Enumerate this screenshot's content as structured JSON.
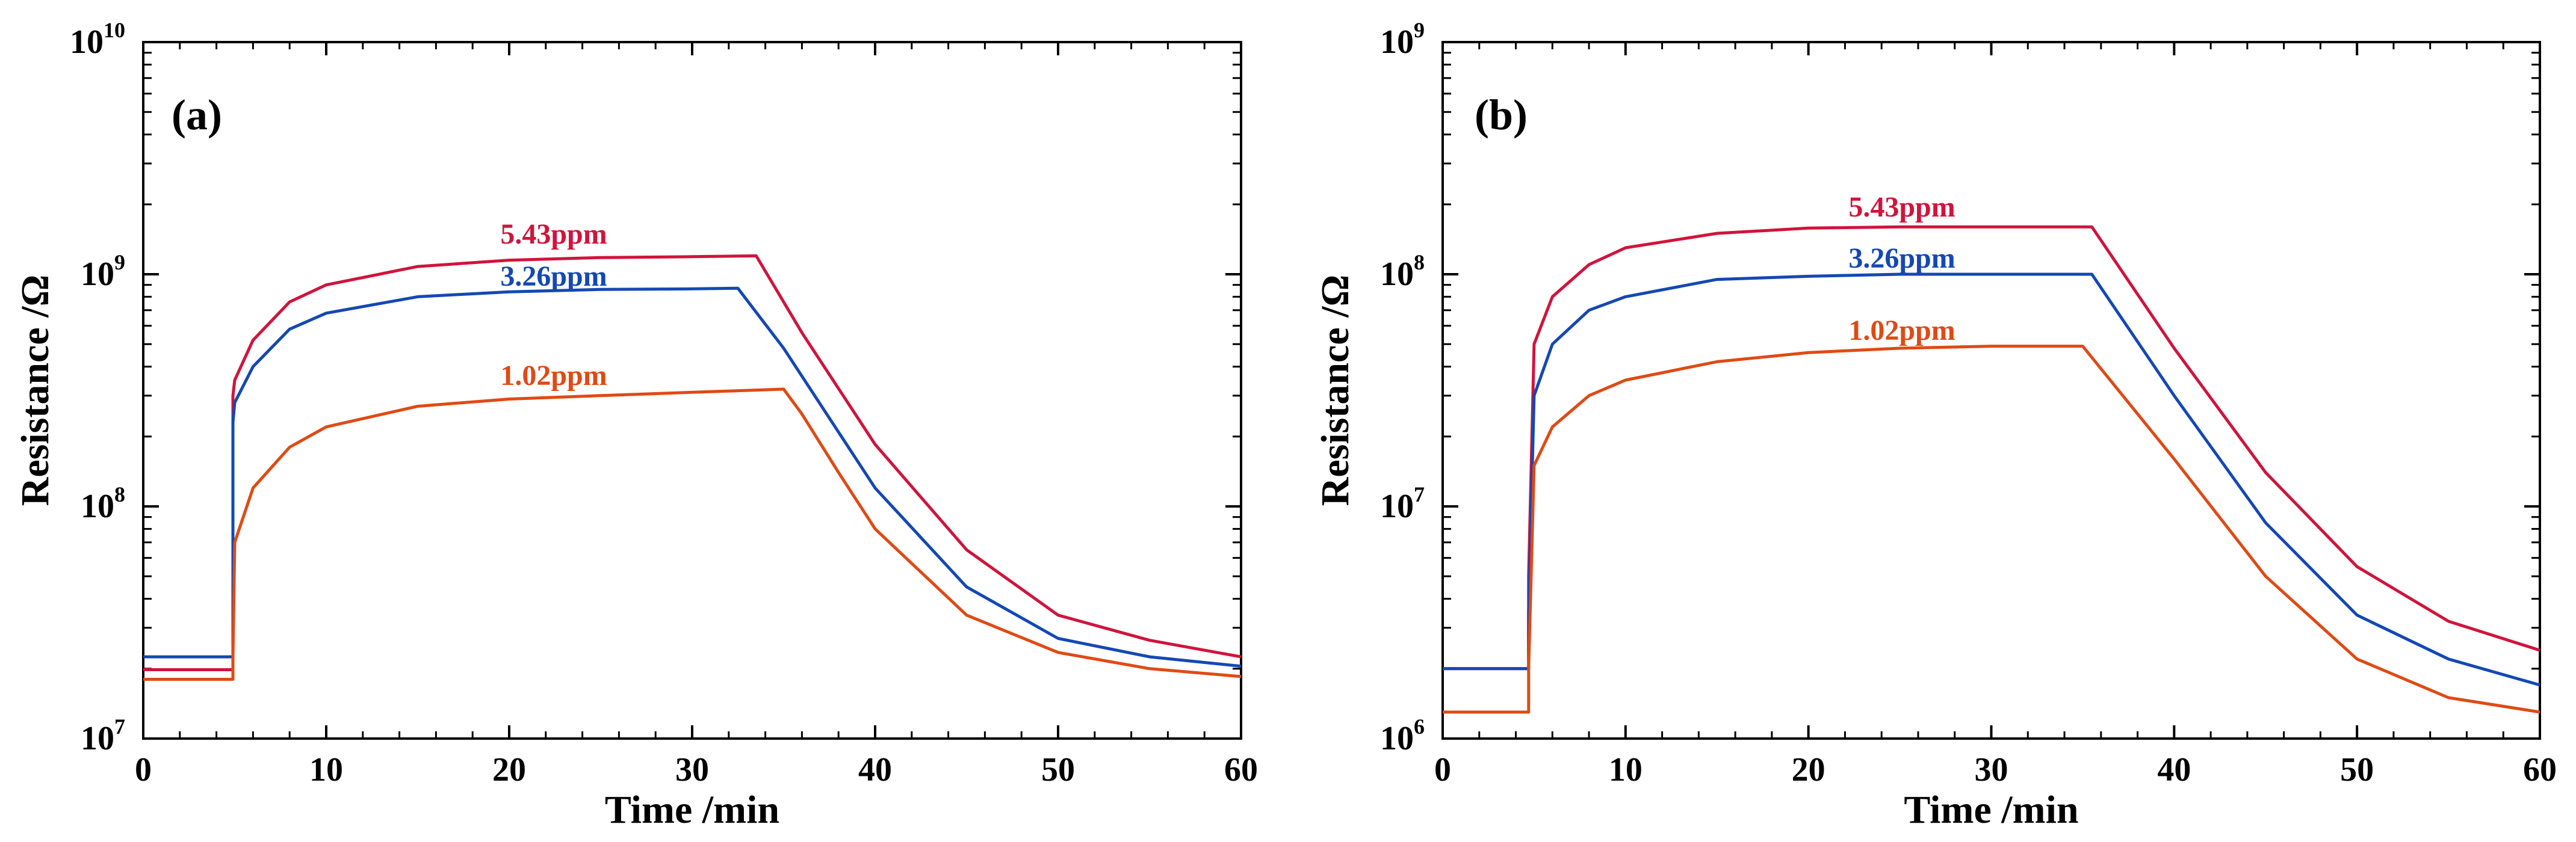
{
  "chart_data": [
    {
      "type": "line",
      "panel_label": "(a)",
      "xlabel": "Time /min",
      "ylabel": "Resistance /Ω",
      "xlim": [
        0,
        60
      ],
      "ylim": [
        10000000,
        10000000000
      ],
      "yscale": "log",
      "x_ticks": [
        "0",
        "10",
        "20",
        "30",
        "40",
        "50",
        "60"
      ],
      "y_ticks": [
        {
          "base": "10",
          "exp": "7"
        },
        {
          "base": "10",
          "exp": "8"
        },
        {
          "base": "10",
          "exp": "9"
        },
        {
          "base": "10",
          "exp": "10"
        }
      ],
      "series": [
        {
          "name": "5.43ppm",
          "color": "#d0143c",
          "x": [
            0,
            4.9,
            4.9,
            5,
            6,
            8,
            10,
            15,
            20,
            25,
            30,
            33.5,
            36,
            40,
            45,
            50,
            55,
            60
          ],
          "y": [
            19800000,
            19800000,
            300000000,
            350000000,
            520000000,
            760000000,
            900000000,
            1080000000,
            1150000000,
            1180000000,
            1190000000,
            1200000000,
            560000000,
            185000000,
            65000000,
            34000000,
            26500000,
            22500000
          ]
        },
        {
          "name": "3.26ppm",
          "color": "#1448b4",
          "x": [
            0,
            4.9,
            4.9,
            5,
            6,
            8,
            10,
            15,
            20,
            25,
            30,
            32.5,
            35,
            40,
            45,
            50,
            55,
            60
          ],
          "y": [
            22500000,
            22500000,
            230000000,
            280000000,
            400000000,
            580000000,
            680000000,
            800000000,
            840000000,
            860000000,
            865000000,
            870000000,
            480000000,
            120000000,
            45000000,
            27000000,
            22500000,
            20500000
          ]
        },
        {
          "name": "1.02ppm",
          "color": "#e04a14",
          "x": [
            0,
            4.9,
            4.9,
            5,
            6,
            8,
            10,
            15,
            20,
            25,
            30,
            35,
            36,
            38,
            40,
            45,
            50,
            55,
            60
          ],
          "y": [
            18000000,
            18000000,
            22000000,
            70000000,
            120000000,
            180000000,
            220000000,
            270000000,
            290000000,
            300000000,
            310000000,
            320000000,
            250000000,
            140000000,
            80000000,
            34000000,
            23500000,
            20000000,
            18500000
          ]
        }
      ]
    },
    {
      "type": "line",
      "panel_label": "(b)",
      "xlabel": "Time /min",
      "ylabel": "Resistance /Ω",
      "xlim": [
        0,
        60
      ],
      "ylim": [
        1000000,
        1000000000
      ],
      "yscale": "log",
      "x_ticks": [
        "0",
        "10",
        "20",
        "30",
        "40",
        "50",
        "60"
      ],
      "y_ticks": [
        {
          "base": "10",
          "exp": "6"
        },
        {
          "base": "10",
          "exp": "7"
        },
        {
          "base": "10",
          "exp": "8"
        },
        {
          "base": "10",
          "exp": "9"
        }
      ],
      "series": [
        {
          "name": "5.43ppm",
          "color": "#d0143c",
          "x": [
            0,
            4.7,
            4.7,
            5,
            6,
            8,
            10,
            15,
            20,
            25,
            30,
            35.5,
            40,
            45,
            50,
            55,
            60
          ],
          "y": [
            2000000,
            2000000,
            5000000,
            50000000,
            80000000,
            110000000,
            130000000,
            150000000,
            158000000,
            160000000,
            160000000,
            160000000,
            48000000,
            14000000,
            5500000,
            3200000,
            2400000
          ]
        },
        {
          "name": "3.26ppm",
          "color": "#1448b4",
          "x": [
            0,
            4.7,
            4.7,
            5,
            6,
            8,
            10,
            15,
            20,
            25,
            30,
            35.5,
            40,
            45,
            50,
            55,
            60
          ],
          "y": [
            2000000,
            2000000,
            3500000,
            30000000,
            50000000,
            70000000,
            80000000,
            95000000,
            98000000,
            100000000,
            100000000,
            100000000,
            30000000,
            8500000,
            3400000,
            2200000,
            1700000
          ]
        },
        {
          "name": "1.02ppm",
          "color": "#e04a14",
          "x": [
            0,
            4.7,
            4.7,
            5,
            6,
            8,
            10,
            15,
            20,
            25,
            30,
            35,
            40,
            45,
            50,
            55,
            60
          ],
          "y": [
            1300000,
            1300000,
            2000000,
            15000000,
            22000000,
            30000000,
            35000000,
            42000000,
            46000000,
            48000000,
            49000000,
            49000000,
            16000000,
            5000000,
            2200000,
            1500000,
            1300000
          ]
        }
      ]
    }
  ]
}
